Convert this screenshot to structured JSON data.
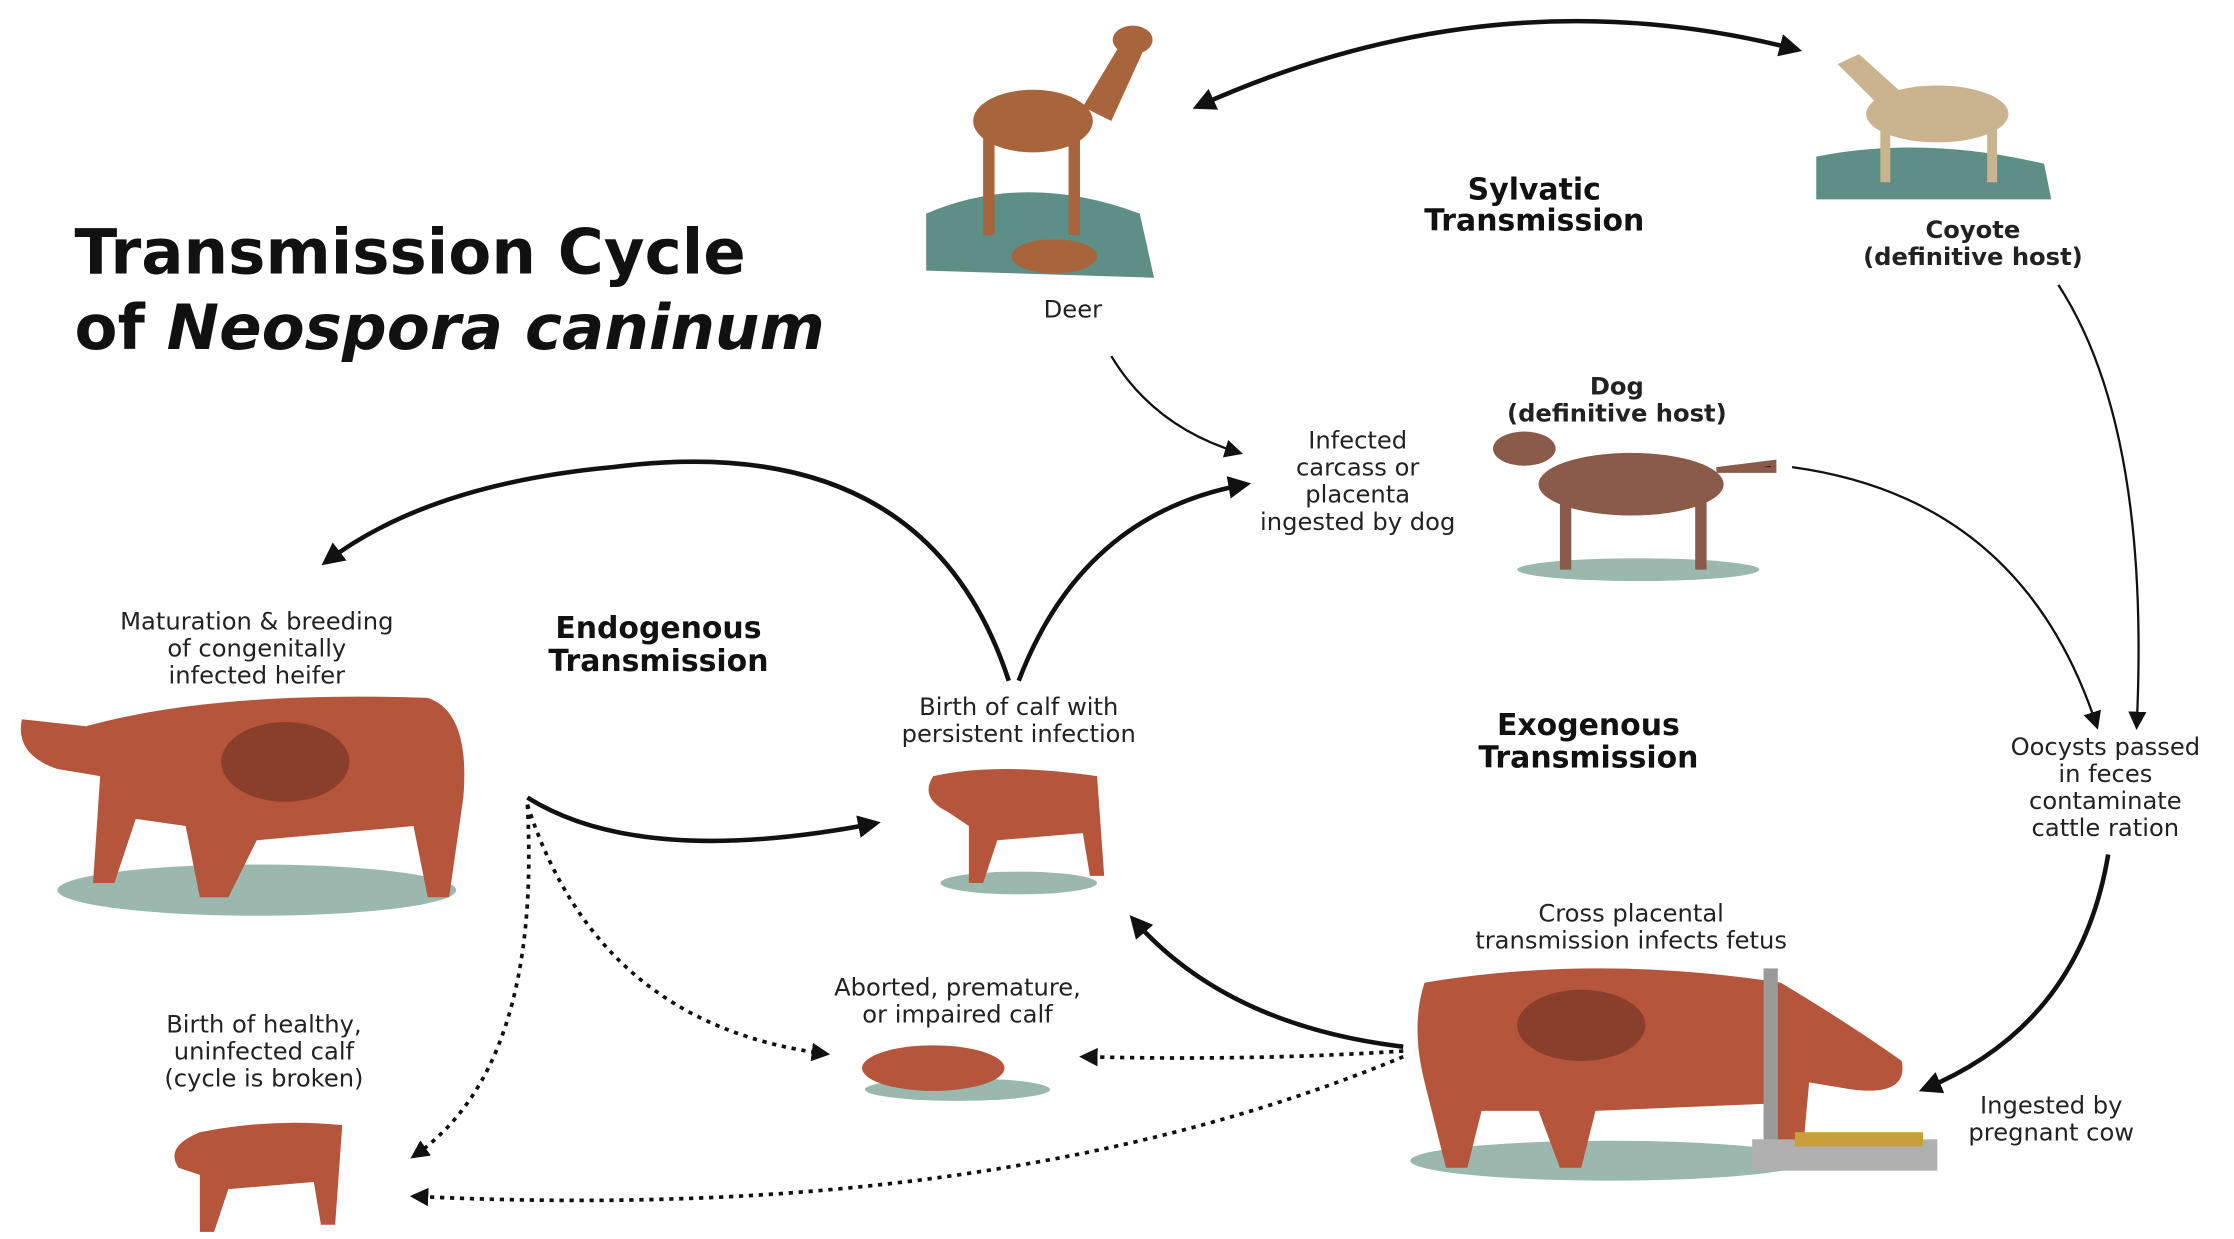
{
  "title": {
    "line1": "Transmission Cycle",
    "line2": "of",
    "species": "Neospora caninum"
  },
  "sections": {
    "sylvatic": [
      "Sylvatic",
      "Transmission"
    ],
    "endogenous": [
      "Endogenous",
      "Transmission"
    ],
    "exogenous": [
      "Exogenous",
      "Transmission"
    ]
  },
  "nodes": {
    "deer": [
      "Deer"
    ],
    "coyote": [
      "Coyote",
      "(definitive host)"
    ],
    "dog": [
      "Dog",
      "(definitive host)"
    ],
    "carcass": [
      "Infected",
      "carcass or",
      "placenta",
      "ingested by dog"
    ],
    "heifer": [
      "Maturation & breeding",
      "of congenitally",
      "infected heifer"
    ],
    "calf_persistent": [
      "Birth of calf with",
      "persistent infection"
    ],
    "oocysts": [
      "Oocysts passed",
      "in feces",
      "contaminate",
      "cattle ration"
    ],
    "cross_placental": [
      "Cross placental",
      "transmission infects fetus"
    ],
    "ingested": [
      "Ingested by",
      "pregnant cow"
    ],
    "aborted": [
      "Aborted, premature,",
      "or impaired calf"
    ],
    "healthy": [
      "Birth of healthy,",
      "uninfected calf",
      "(cycle is broken)"
    ]
  }
}
